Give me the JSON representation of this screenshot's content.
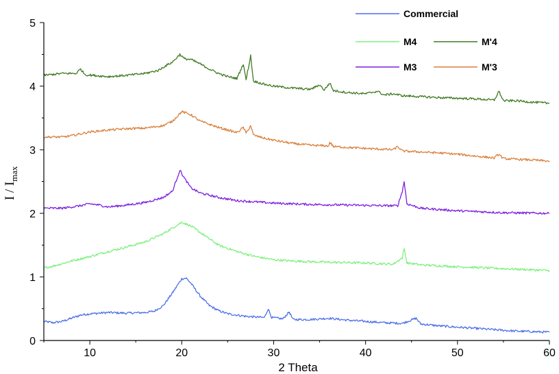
{
  "chart_data": {
    "type": "line",
    "xlabel": "2 Theta",
    "ylabel": "I / I",
    "ylabel_sub": "max",
    "xlim": [
      5,
      60
    ],
    "ylim": [
      0,
      5
    ],
    "xticks": [
      10,
      20,
      30,
      40,
      50,
      60
    ],
    "yticks": [
      0,
      1,
      2,
      3,
      4,
      5
    ],
    "grid": false,
    "legend_position": "top-right",
    "series": [
      {
        "name": "Commercial",
        "color": "#4d6fe8",
        "points": [
          [
            5,
            0.3
          ],
          [
            6,
            0.28
          ],
          [
            7,
            0.3
          ],
          [
            8,
            0.35
          ],
          [
            9,
            0.4
          ],
          [
            10,
            0.42
          ],
          [
            12,
            0.44
          ],
          [
            14,
            0.43
          ],
          [
            16,
            0.44
          ],
          [
            17,
            0.46
          ],
          [
            18,
            0.55
          ],
          [
            19,
            0.75
          ],
          [
            20,
            0.97
          ],
          [
            20.5,
            0.98
          ],
          [
            21,
            0.9
          ],
          [
            22,
            0.7
          ],
          [
            23,
            0.55
          ],
          [
            24,
            0.47
          ],
          [
            25,
            0.42
          ],
          [
            27,
            0.38
          ],
          [
            29,
            0.36
          ],
          [
            29.4,
            0.5
          ],
          [
            29.8,
            0.36
          ],
          [
            31,
            0.34
          ],
          [
            31.7,
            0.45
          ],
          [
            32.1,
            0.33
          ],
          [
            34,
            0.33
          ],
          [
            36,
            0.35
          ],
          [
            38,
            0.32
          ],
          [
            40,
            0.3
          ],
          [
            42,
            0.28
          ],
          [
            44,
            0.27
          ],
          [
            45.5,
            0.35
          ],
          [
            46,
            0.26
          ],
          [
            48,
            0.23
          ],
          [
            50,
            0.21
          ],
          [
            52,
            0.19
          ],
          [
            54,
            0.17
          ],
          [
            56,
            0.15
          ],
          [
            58,
            0.14
          ],
          [
            60,
            0.13
          ]
        ]
      },
      {
        "name": "M4",
        "color": "#7ef07e",
        "points": [
          [
            5,
            1.14
          ],
          [
            6,
            1.17
          ],
          [
            8,
            1.25
          ],
          [
            10,
            1.32
          ],
          [
            12,
            1.4
          ],
          [
            14,
            1.47
          ],
          [
            16,
            1.55
          ],
          [
            18,
            1.68
          ],
          [
            19,
            1.77
          ],
          [
            20,
            1.86
          ],
          [
            21,
            1.8
          ],
          [
            22,
            1.7
          ],
          [
            23,
            1.6
          ],
          [
            24,
            1.5
          ],
          [
            26,
            1.4
          ],
          [
            28,
            1.32
          ],
          [
            30,
            1.27
          ],
          [
            32,
            1.25
          ],
          [
            36,
            1.23
          ],
          [
            40,
            1.22
          ],
          [
            43,
            1.2
          ],
          [
            44,
            1.3
          ],
          [
            44.2,
            1.45
          ],
          [
            44.5,
            1.22
          ],
          [
            46,
            1.19
          ],
          [
            50,
            1.16
          ],
          [
            55,
            1.13
          ],
          [
            60,
            1.1
          ]
        ]
      },
      {
        "name": "M3",
        "color": "#7b1fe0",
        "points": [
          [
            5,
            2.08
          ],
          [
            7,
            2.08
          ],
          [
            8,
            2.1
          ],
          [
            9,
            2.12
          ],
          [
            10,
            2.15
          ],
          [
            11,
            2.13
          ],
          [
            12,
            2.1
          ],
          [
            14,
            2.13
          ],
          [
            16,
            2.17
          ],
          [
            18,
            2.25
          ],
          [
            19,
            2.35
          ],
          [
            19.8,
            2.68
          ],
          [
            20.3,
            2.55
          ],
          [
            21,
            2.4
          ],
          [
            22,
            2.32
          ],
          [
            24,
            2.25
          ],
          [
            26,
            2.2
          ],
          [
            28,
            2.18
          ],
          [
            30,
            2.16
          ],
          [
            34,
            2.14
          ],
          [
            38,
            2.13
          ],
          [
            42,
            2.12
          ],
          [
            43.5,
            2.12
          ],
          [
            44,
            2.35
          ],
          [
            44.2,
            2.5
          ],
          [
            44.5,
            2.15
          ],
          [
            46,
            2.08
          ],
          [
            50,
            2.04
          ],
          [
            55,
            2.01
          ],
          [
            60,
            2.0
          ]
        ]
      },
      {
        "name": "M'3",
        "color": "#d9803d",
        "points": [
          [
            5,
            3.2
          ],
          [
            7,
            3.2
          ],
          [
            8,
            3.22
          ],
          [
            9,
            3.25
          ],
          [
            10,
            3.28
          ],
          [
            12,
            3.31
          ],
          [
            14,
            3.33
          ],
          [
            16,
            3.34
          ],
          [
            18,
            3.38
          ],
          [
            19,
            3.45
          ],
          [
            20,
            3.6
          ],
          [
            21,
            3.55
          ],
          [
            22,
            3.45
          ],
          [
            24,
            3.35
          ],
          [
            26,
            3.27
          ],
          [
            26.7,
            3.35
          ],
          [
            27,
            3.26
          ],
          [
            27.5,
            3.38
          ],
          [
            27.8,
            3.23
          ],
          [
            29,
            3.18
          ],
          [
            30,
            3.15
          ],
          [
            32,
            3.1
          ],
          [
            34,
            3.07
          ],
          [
            36,
            3.06
          ],
          [
            36.1,
            3.12
          ],
          [
            36.5,
            3.05
          ],
          [
            40,
            3.02
          ],
          [
            43,
            3.0
          ],
          [
            43.5,
            3.05
          ],
          [
            44,
            2.98
          ],
          [
            48,
            2.95
          ],
          [
            50,
            2.93
          ],
          [
            52,
            2.9
          ],
          [
            54,
            2.87
          ],
          [
            54.5,
            2.93
          ],
          [
            55,
            2.86
          ],
          [
            58,
            2.84
          ],
          [
            60,
            2.82
          ]
        ]
      },
      {
        "name": "M'4",
        "color": "#3f7a22",
        "points": [
          [
            5,
            4.17
          ],
          [
            7,
            4.2
          ],
          [
            8.5,
            4.2
          ],
          [
            9,
            4.27
          ],
          [
            9.5,
            4.18
          ],
          [
            12,
            4.15
          ],
          [
            14,
            4.17
          ],
          [
            16,
            4.2
          ],
          [
            17.5,
            4.25
          ],
          [
            18,
            4.3
          ],
          [
            19,
            4.38
          ],
          [
            19.8,
            4.5
          ],
          [
            20.3,
            4.43
          ],
          [
            21,
            4.42
          ],
          [
            22,
            4.35
          ],
          [
            23,
            4.27
          ],
          [
            24,
            4.2
          ],
          [
            25,
            4.15
          ],
          [
            26,
            4.12
          ],
          [
            26.7,
            4.35
          ],
          [
            27,
            4.1
          ],
          [
            27.5,
            4.48
          ],
          [
            27.8,
            4.08
          ],
          [
            29,
            4.03
          ],
          [
            30,
            4.0
          ],
          [
            32,
            3.97
          ],
          [
            34,
            3.95
          ],
          [
            35,
            4.02
          ],
          [
            35.5,
            3.94
          ],
          [
            36.1,
            4.05
          ],
          [
            36.5,
            3.93
          ],
          [
            38,
            3.9
          ],
          [
            40,
            3.88
          ],
          [
            41.3,
            3.92
          ],
          [
            42,
            3.86
          ],
          [
            43,
            3.88
          ],
          [
            44,
            3.85
          ],
          [
            48,
            3.82
          ],
          [
            52,
            3.8
          ],
          [
            54,
            3.78
          ],
          [
            54.5,
            3.92
          ],
          [
            55,
            3.77
          ],
          [
            56.5,
            3.77
          ],
          [
            58,
            3.75
          ],
          [
            60,
            3.73
          ]
        ]
      }
    ]
  }
}
